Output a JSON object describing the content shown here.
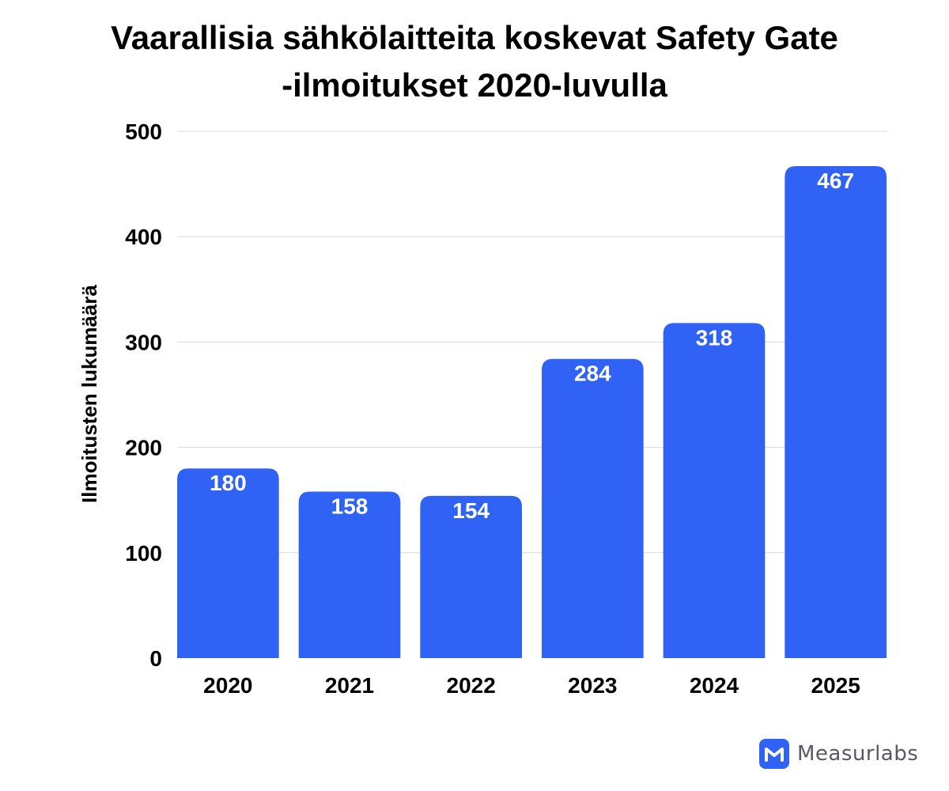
{
  "chart_data": {
    "type": "bar",
    "title_lines": [
      "Vaarallisia sähkölaitteita koskevat Safety Gate",
      "-ilmoitukset 2020-luvulla"
    ],
    "categories": [
      "2020",
      "2021",
      "2022",
      "2023",
      "2024",
      "2025"
    ],
    "values": [
      180,
      158,
      154,
      284,
      318,
      467
    ],
    "data_labels": [
      "180",
      "158",
      "154",
      "284",
      "318",
      "467"
    ],
    "xlabel": "",
    "ylabel": "Ilmoitusten lukumäärä",
    "ylim": [
      0,
      500
    ],
    "yticks": [
      0,
      100,
      200,
      300,
      400,
      500
    ],
    "ytick_labels": [
      "0",
      "100",
      "200",
      "300",
      "400",
      "500"
    ],
    "grid": true,
    "colors": {
      "bar": "#2f62f5",
      "grid": "#d9d9d9",
      "label": "#ffffff"
    }
  },
  "branding": {
    "name": "Measurlabs",
    "logo_icon": "m-logo-icon"
  }
}
